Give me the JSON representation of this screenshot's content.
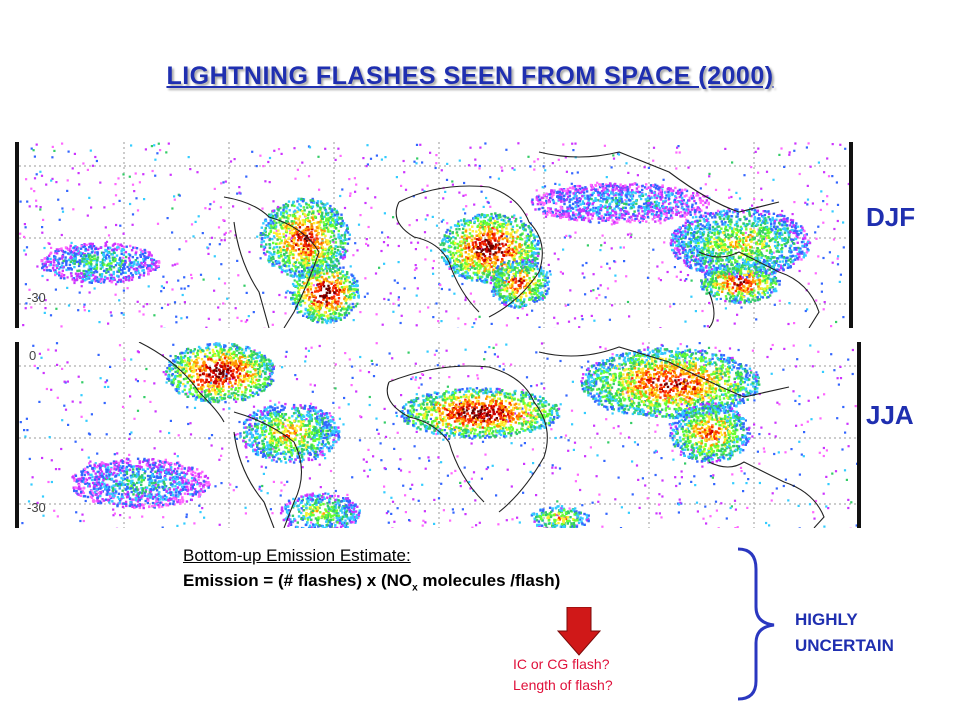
{
  "title": "LIGHTNING FLASHES SEEN FROM SPACE (2000)",
  "maps": [
    {
      "season": "DJF",
      "lat_label": "-30",
      "icon": "lightning-density-map"
    },
    {
      "season": "JJA",
      "lat_labels": [
        "0",
        "-30"
      ],
      "icon": "lightning-density-map"
    }
  ],
  "estimate": {
    "label": "Bottom-up Emission Estimate:",
    "formula_prefix": "Emission = (# flashes) x (NO",
    "formula_sub": "x",
    "formula_suffix": " molecules /flash)"
  },
  "questions": [
    "IC or CG flash?",
    "Length of flash?"
  ],
  "uncertain": [
    "HIGHLY",
    "UNCERTAIN"
  ],
  "colors": {
    "title": "#1f2fb0",
    "question": "#e0103a",
    "arrow": "#d01818",
    "bracket": "#2a37c0"
  }
}
